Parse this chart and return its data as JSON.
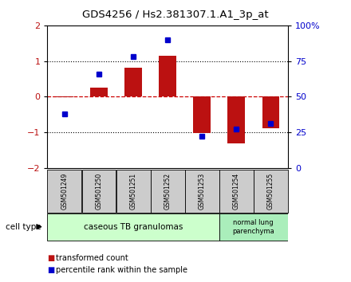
{
  "title": "GDS4256 / Hs2.381307.1.A1_3p_at",
  "samples": [
    "GSM501249",
    "GSM501250",
    "GSM501251",
    "GSM501252",
    "GSM501253",
    "GSM501254",
    "GSM501255"
  ],
  "red_values": [
    -0.02,
    0.25,
    0.82,
    1.15,
    -1.02,
    -1.32,
    -0.88
  ],
  "blue_percentiles": [
    0.38,
    0.66,
    0.78,
    0.9,
    0.22,
    0.27,
    0.31
  ],
  "ylim": [
    -2,
    2
  ],
  "yticks_left": [
    -2,
    -1,
    0,
    1,
    2
  ],
  "bar_color": "#bb1111",
  "dot_color": "#0000cc",
  "hline_color": "#cc0000",
  "group1_label": "caseous TB granulomas",
  "group2_label": "normal lung\nparenchyma",
  "group1_count": 5,
  "group2_count": 2,
  "legend1": "transformed count",
  "legend2": "percentile rank within the sample",
  "cell_type_label": "cell type",
  "group1_color": "#ccffcc",
  "group2_color": "#aaeebb",
  "sample_box_color": "#cccccc",
  "bar_width": 0.5
}
